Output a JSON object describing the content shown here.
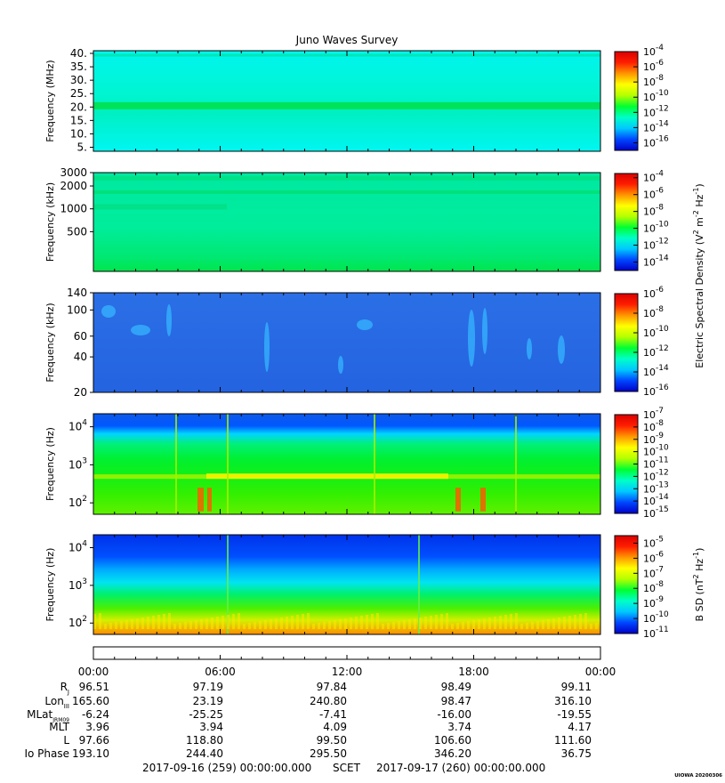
{
  "title": "Juno Waves Survey",
  "credit": "UIOWA 20200306",
  "chart_data": [
    {
      "type": "heatmap",
      "ylabel": "Frequency (MHz)",
      "yscale": "linear",
      "ylim": [
        3.5,
        41
      ],
      "yticks": [
        {
          "v": 40,
          "label": "40."
        },
        {
          "v": 35,
          "label": "35."
        },
        {
          "v": 30,
          "label": "30."
        },
        {
          "v": 25,
          "label": "25."
        },
        {
          "v": 20,
          "label": "20."
        },
        {
          "v": 15,
          "label": "15."
        },
        {
          "v": 10,
          "label": "10."
        },
        {
          "v": 5,
          "label": "5."
        }
      ],
      "colorbar": {
        "min_exp": -17,
        "max_exp": -4,
        "ticks": [
          -4,
          -6,
          -8,
          -10,
          -12,
          -14,
          -16
        ]
      }
    },
    {
      "type": "heatmap",
      "ylabel": "Frequency (kHz)",
      "yscale": "log",
      "ylim": [
        150,
        3000
      ],
      "yticks": [
        {
          "v": 3000,
          "label": "3000"
        },
        {
          "v": 2000,
          "label": "2000"
        },
        {
          "v": 1000,
          "label": "1000"
        },
        {
          "v": 500,
          "label": "500"
        }
      ],
      "colorbar": {
        "min_exp": -15,
        "max_exp": -3.5,
        "ticks": [
          -4,
          -6,
          -8,
          -10,
          -12,
          -14
        ]
      }
    },
    {
      "type": "heatmap",
      "ylabel": "Frequency (kHz)",
      "yscale": "log",
      "ylim": [
        20,
        140
      ],
      "yticks": [
        {
          "v": 140,
          "label": "140"
        },
        {
          "v": 100,
          "label": "100"
        },
        {
          "v": 60,
          "label": "60"
        },
        {
          "v": 40,
          "label": "40"
        },
        {
          "v": 20,
          "label": "20"
        }
      ],
      "colorbar": {
        "min_exp": -16,
        "max_exp": -6,
        "ticks": [
          -6,
          -8,
          -10,
          -12,
          -14,
          -16
        ]
      }
    },
    {
      "type": "heatmap",
      "ylabel": "Frequency (Hz)",
      "yscale": "log",
      "ylim": [
        50,
        22000
      ],
      "yticks": [
        {
          "v": 10000,
          "label": "10",
          "sup": "4"
        },
        {
          "v": 1000,
          "label": "10",
          "sup": "3"
        },
        {
          "v": 100,
          "label": "10",
          "sup": "2"
        }
      ],
      "colorbar": {
        "min_exp": -15,
        "max_exp": -7,
        "ticks": [
          -7,
          -8,
          -9,
          -10,
          -11,
          -12,
          -13,
          -14,
          -15
        ]
      }
    },
    {
      "type": "heatmap",
      "ylabel": "Frequency (Hz)",
      "yscale": "log",
      "ylim": [
        50,
        22000
      ],
      "yticks": [
        {
          "v": 10000,
          "label": "10",
          "sup": "4"
        },
        {
          "v": 1000,
          "label": "10",
          "sup": "3"
        },
        {
          "v": 100,
          "label": "10",
          "sup": "2"
        }
      ],
      "colorbar": {
        "min_exp": -11,
        "max_exp": -4.5,
        "ticks": [
          -5,
          -6,
          -7,
          -8,
          -9,
          -10,
          -11
        ]
      }
    }
  ],
  "colorbar_labels": {
    "electric": "Electric Spectral Density (V",
    "electric_units": [
      "2",
      " m",
      "-2",
      " Hz",
      "-1",
      ")"
    ],
    "magnetic": "B SD (nT",
    "magnetic_units": [
      "2",
      " Hz",
      "-1",
      ")"
    ]
  },
  "time_axis": {
    "labels": [
      "00:00",
      "06:00",
      "12:00",
      "18:00",
      "00:00"
    ]
  },
  "ephemeris": {
    "rows": [
      {
        "label": "R",
        "sub": "J",
        "values": [
          "96.51",
          "97.19",
          "97.84",
          "98.49",
          "99.11"
        ]
      },
      {
        "label": "Lon",
        "sub": "III",
        "values": [
          "165.60",
          "23.19",
          "240.80",
          "98.47",
          "316.10"
        ]
      },
      {
        "label": "MLat",
        "sub": "JRM09",
        "values": [
          "-6.24",
          "-25.25",
          "-7.41",
          "-16.00",
          "-19.55"
        ]
      },
      {
        "label": "MLT",
        "sub": "",
        "values": [
          "3.96",
          "3.94",
          "4.09",
          "3.74",
          "4.17"
        ]
      },
      {
        "label": "L",
        "sub": "",
        "values": [
          "97.66",
          "118.80",
          "99.50",
          "106.60",
          "111.60"
        ]
      },
      {
        "label": "Io Phase",
        "sub": "",
        "values": [
          "193.10",
          "244.40",
          "295.50",
          "346.20",
          "36.75"
        ]
      }
    ]
  },
  "footer": {
    "start": "2017-09-16 (259) 00:00:00.000",
    "scet": "SCET",
    "end": "2017-09-17 (260) 00:00:00.000"
  }
}
